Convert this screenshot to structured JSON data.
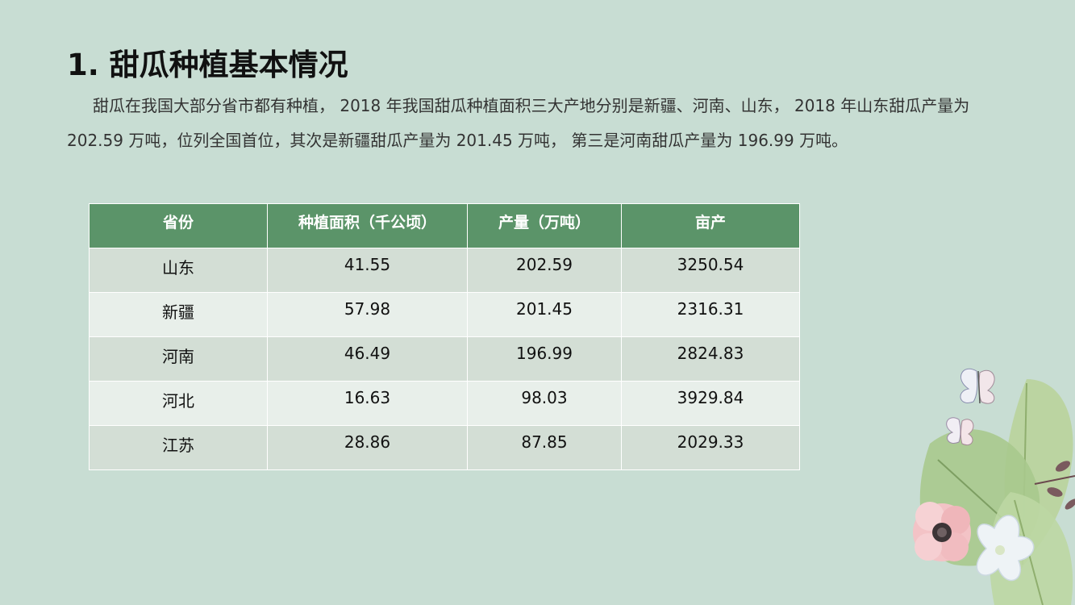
{
  "title": "1. 甜瓜种植基本情况",
  "intro": "甜瓜在我国大部分省市都有种植， 2018 年我国甜瓜种植面积三大产地分别是新疆、河南、山东， 2018 年山东甜瓜产量为 202.59 万吨，位列全国首位，其次是新疆甜瓜产量为 201.45 万吨， 第三是河南甜瓜产量为 196.99 万吨。",
  "table": {
    "headers": [
      "省份",
      "种植面积（千公顷）",
      "产量（万吨）",
      "亩产"
    ],
    "rows": [
      [
        "山东",
        "41.55",
        "202.59",
        "3250.54"
      ],
      [
        "新疆",
        "57.98",
        "201.45",
        "2316.31"
      ],
      [
        "河南",
        "46.49",
        "196.99",
        "2824.83"
      ],
      [
        "河北",
        "16.63",
        "98.03",
        "3929.84"
      ],
      [
        "江苏",
        "28.86",
        "87.85",
        "2029.33"
      ]
    ]
  },
  "colors": {
    "background": "#c8ddd3",
    "header_fill": "#5b9469",
    "row_odd": "#d3ded5",
    "row_even": "#e8efea"
  },
  "decoration": "floral-butterfly-illustration"
}
